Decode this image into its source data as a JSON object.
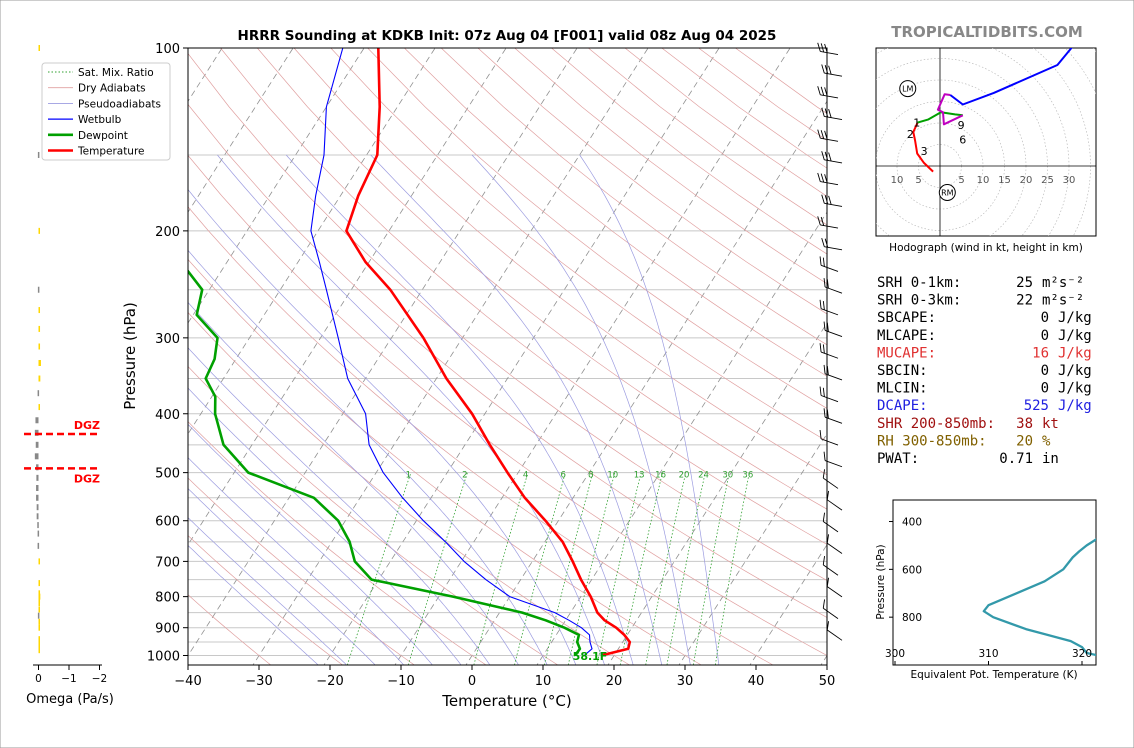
{
  "title": "HRRR Sounding at KDKB Init: 07z Aug 04 [F001] valid 08z Aug 04 2025",
  "watermark": "TROPICALTIDBITS.COM",
  "chart_data": [
    {
      "type": "line",
      "name": "skew-t",
      "xlabel": "Temperature (°C)",
      "ylabel": "Pressure (hPa)",
      "x_ticks": [
        "−40",
        "−30",
        "−20",
        "−10",
        "0",
        "10",
        "20",
        "30",
        "40",
        "50"
      ],
      "x_tick_values": [
        -40,
        -30,
        -20,
        -10,
        0,
        10,
        20,
        30,
        40,
        50
      ],
      "y_ticks": [
        "100",
        "200",
        "300",
        "400",
        "500",
        "600",
        "700",
        "800",
        "900",
        "1000"
      ],
      "y_tick_values": [
        100,
        200,
        300,
        400,
        500,
        600,
        700,
        800,
        900,
        1000
      ],
      "xlim": [
        -40,
        50
      ],
      "ylim": [
        1050,
        100
      ],
      "y_scale": "log",
      "legend": {
        "placement": "upper-left",
        "entries": [
          "Sat. Mix. Ratio",
          "Dry Adiabats",
          "Pseudoadiabats",
          "Wetbulb",
          "Dewpoint",
          "Temperature"
        ]
      },
      "mixing_ratio_labels": [
        "1",
        "2",
        "4",
        "6",
        "8",
        "10",
        "13",
        "16",
        "20",
        "24",
        "30",
        "36"
      ],
      "mixing_ratio_values": [
        1,
        2,
        4,
        6,
        8,
        10,
        13,
        16,
        20,
        24,
        30,
        36
      ],
      "surface_label": "58.1F",
      "series": [
        {
          "name": "Temperature",
          "color": "#ff0000",
          "p": [
            1000,
            975,
            950,
            925,
            900,
            875,
            850,
            800,
            750,
            700,
            650,
            600,
            550,
            500,
            450,
            400,
            350,
            300,
            250,
            225,
            200,
            175,
            150,
            125,
            100
          ],
          "t": [
            18.2,
            21.4,
            21.0,
            19.6,
            17.8,
            15.5,
            13.8,
            11.4,
            8.5,
            5.7,
            2.5,
            -1.8,
            -6.8,
            -11.5,
            -16.5,
            -21.8,
            -28.6,
            -35.5,
            -44.5,
            -50.5,
            -56.0,
            -57.5,
            -58.5,
            -62.5,
            -68.0
          ]
        },
        {
          "name": "Dewpoint",
          "color": "#00a000",
          "p": [
            1000,
            975,
            950,
            925,
            900,
            875,
            850,
            800,
            750,
            700,
            650,
            600,
            550,
            500,
            450,
            400,
            375,
            350,
            325,
            300,
            275,
            250,
            225,
            200,
            175,
            150,
            125,
            100
          ],
          "t": [
            14.5,
            14.6,
            13.6,
            13.2,
            10.5,
            7.2,
            3.2,
            -8.0,
            -21.0,
            -25.0,
            -27.5,
            -31.0,
            -36.5,
            -48.0,
            -54.0,
            -58.0,
            -59.5,
            -62.5,
            -63.0,
            -64.5,
            -69.5,
            -71.0,
            -76.5,
            -82.0,
            -86.0,
            -92.0,
            -94.0,
            -98.0
          ]
        },
        {
          "name": "Wetbulb",
          "color": "#0000ff",
          "p": [
            1000,
            975,
            950,
            925,
            900,
            875,
            850,
            800,
            750,
            700,
            650,
            600,
            550,
            500,
            450,
            400,
            350,
            300,
            250,
            225,
            200,
            175,
            150,
            125,
            100
          ],
          "t": [
            15.8,
            16.3,
            15.4,
            14.7,
            12.9,
            10.5,
            7.8,
            0.0,
            -4.9,
            -9.6,
            -14.0,
            -19.0,
            -24.0,
            -29.0,
            -33.5,
            -36.8,
            -42.5,
            -47.5,
            -53.5,
            -57.0,
            -61.0,
            -63.5,
            -66.0,
            -70.0,
            -73.0
          ]
        }
      ],
      "wind_barbs": {
        "side": "right",
        "levels": 28
      }
    },
    {
      "type": "line",
      "name": "hodograph",
      "title": "Hodograph (wind in kt, height in km)",
      "ring_labels": [
        "5",
        "10",
        "15",
        "20",
        "25",
        "30"
      ],
      "ring_values": [
        5,
        10,
        15,
        20,
        25,
        30
      ],
      "left_ring_labels": [
        "10",
        "5"
      ],
      "height_labels": [
        "1",
        "2",
        "3",
        "6",
        "9"
      ],
      "markers": [
        "LM",
        "RM"
      ],
      "series": [
        {
          "name": "0-1km",
          "color": "#ff0000",
          "u": [
            -1.6,
            -3.8,
            -5.3,
            -5.8,
            -6.2,
            -5.2
          ],
          "v": [
            -1.3,
            0.8,
            2.9,
            5.9,
            7.9,
            10.1
          ]
        },
        {
          "name": "1-3km",
          "color": "#00a000",
          "u": [
            -5.2,
            -2.8,
            0.2,
            3.5,
            5.3
          ],
          "v": [
            10.1,
            10.8,
            12.5,
            12.0,
            11.8
          ]
        },
        {
          "name": "3-9km",
          "color": "#c000c0",
          "u": [
            5.3,
            0.9,
            0.7,
            -0.5,
            1.1,
            2.4
          ],
          "v": [
            11.8,
            9.7,
            12.5,
            13.1,
            16.7,
            16.5
          ]
        },
        {
          "name": "9km+",
          "color": "#0000ff",
          "u": [
            2.4,
            5.3,
            12.5,
            27.3,
            30.6,
            31.1
          ],
          "v": [
            16.5,
            14.3,
            17.0,
            23.5,
            27.5,
            29.0
          ]
        }
      ],
      "lm": {
        "u": -7.5,
        "v": 18.0
      },
      "rm": {
        "u": 1.0,
        "v": -5.0
      }
    },
    {
      "type": "line",
      "name": "theta-e",
      "xlabel": "Equivalent Pot. Temperature (K)",
      "ylabel": "Pressure (hPa)",
      "x_ticks": [
        "300",
        "310",
        "320",
        "330",
        "340"
      ],
      "x_tick_values": [
        300,
        310,
        320,
        330,
        340
      ],
      "y_ticks": [
        "400",
        "600",
        "800"
      ],
      "y_tick_values": [
        400,
        600,
        800
      ],
      "xlim": [
        300,
        342
      ],
      "ylim": [
        1000,
        310
      ],
      "series": [
        {
          "name": "theta-e",
          "color": "#3399aa",
          "p": [
            310,
            325,
            350,
            375,
            400,
            450,
            500,
            525,
            550,
            600,
            650,
            700,
            750,
            775,
            800,
            850,
            900,
            925,
            950,
            975,
            985,
            1000
          ],
          "x": [
            334.0,
            332.0,
            330.5,
            329.5,
            327.5,
            322.5,
            320.5,
            319.7,
            319.0,
            318.0,
            316.0,
            313.0,
            310.0,
            309.5,
            310.5,
            314.0,
            318.8,
            320.0,
            320.5,
            323.5,
            328.0,
            326.5
          ]
        }
      ]
    },
    {
      "type": "bar",
      "name": "omega",
      "xlabel": "Omega (Pa/s)",
      "x_ticks": [
        "0",
        "−1",
        "−2"
      ],
      "x_tick_values": [
        0,
        -1,
        -2
      ],
      "dgz_label": "DGZ",
      "dgz_top_p": 432,
      "dgz_bottom_p": 492,
      "bars": {
        "p": [
          100,
          150,
          200,
          250,
          270,
          290,
          310,
          330,
          350,
          370,
          390,
          410,
          430,
          450,
          470,
          490,
          510,
          530,
          550,
          570,
          590,
          610,
          630,
          660,
          700,
          760,
          790,
          800,
          810,
          820,
          840,
          860,
          880,
          900,
          940,
          960,
          980
        ],
        "value": [
          -0.02,
          0.02,
          -0.02,
          0.02,
          -0.02,
          -0.05,
          -0.05,
          -0.08,
          -0.06,
          0.03,
          -0.04,
          0.1,
          0.12,
          0.09,
          0.12,
          0.08,
          0.07,
          0.08,
          0.08,
          0.06,
          0.06,
          0.04,
          0.03,
          0.03,
          -0.02,
          -0.04,
          -0.05,
          -0.06,
          -0.05,
          -0.04,
          -0.03,
          0.02,
          -0.02,
          -0.02,
          -0.02,
          -0.02,
          -0.02
        ]
      }
    }
  ],
  "stats": [
    {
      "label": "SRH 0-1km:",
      "value": "25",
      "unit": "m²s⁻²",
      "color": "#000000"
    },
    {
      "label": "SRH 0-3km:",
      "value": "22",
      "unit": "m²s⁻²",
      "color": "#000000"
    },
    {
      "label": "SBCAPE:",
      "value": "0",
      "unit": "J/kg",
      "color": "#000000"
    },
    {
      "label": "MLCAPE:",
      "value": "0",
      "unit": "J/kg",
      "color": "#000000"
    },
    {
      "label": "MUCAPE:",
      "value": "16",
      "unit": "J/kg",
      "color": "#e03030"
    },
    {
      "label": "SBCIN:",
      "value": "0",
      "unit": "J/kg",
      "color": "#000000"
    },
    {
      "label": "MLCIN:",
      "value": "0",
      "unit": "J/kg",
      "color": "#000000"
    },
    {
      "label": "DCAPE:",
      "value": "525",
      "unit": "J/kg",
      "color": "#2020e0"
    },
    {
      "label": "SHR 200-850mb:",
      "value": "38",
      "unit": "kt",
      "color": "#a01010"
    },
    {
      "label": "RH 300-850mb:",
      "value": "20",
      "unit": "%",
      "color": "#806000"
    },
    {
      "label": "PWAT:",
      "value": "0.71",
      "unit": "in",
      "color": "#000000"
    }
  ]
}
